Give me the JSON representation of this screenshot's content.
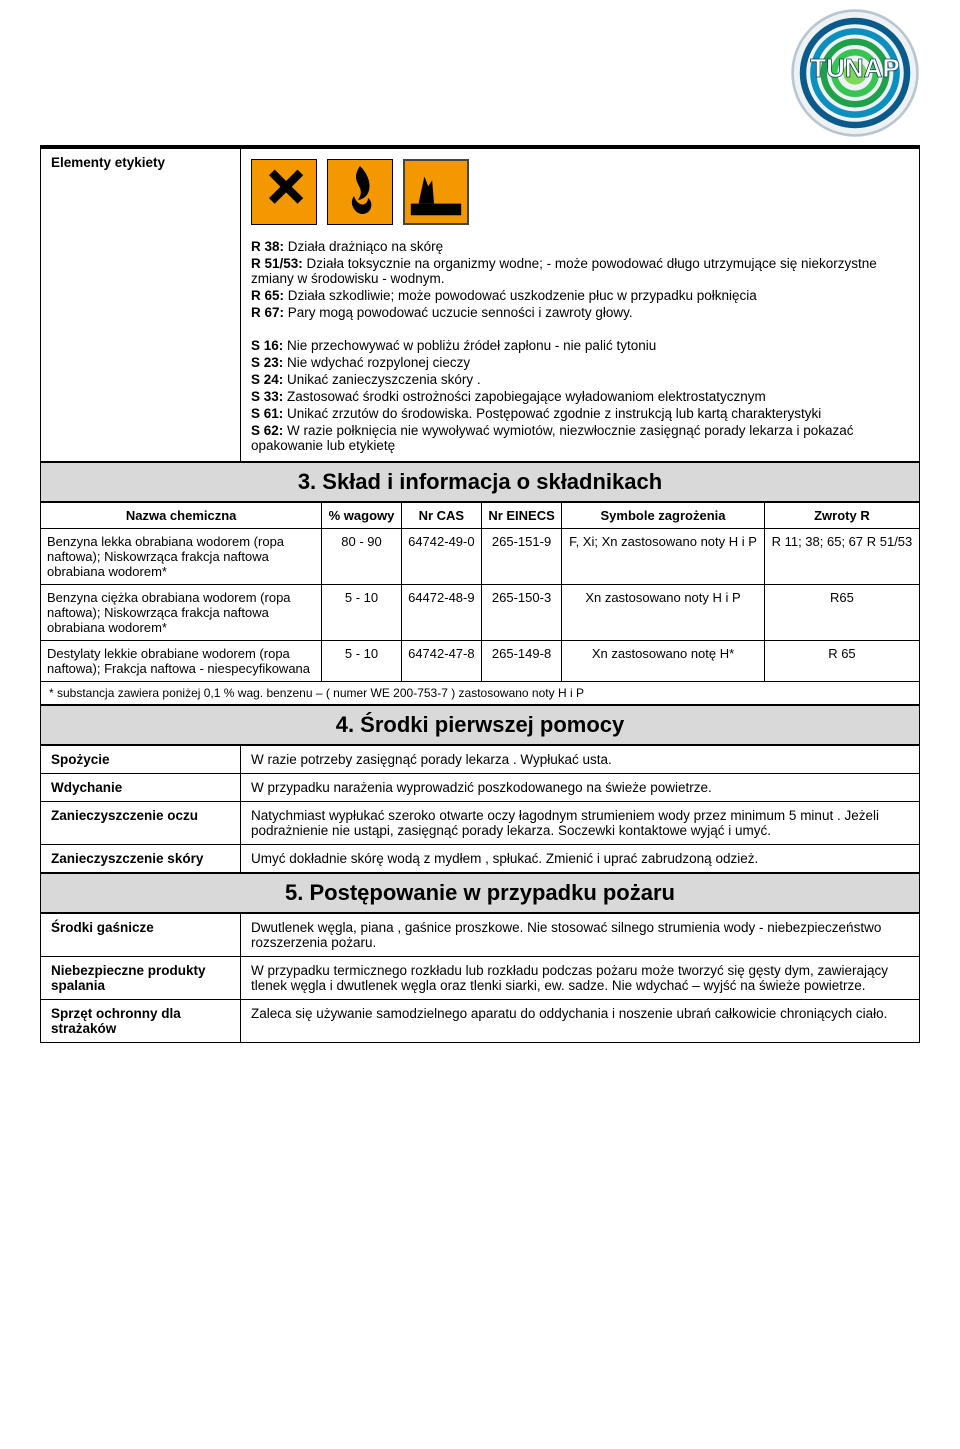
{
  "logo_text": "TUNAP",
  "sec2_label": "Elementy etykiety",
  "r_phrases": [
    {
      "code": "R 38:",
      "text": "Działa drażniąco na  skórę"
    },
    {
      "code": "R 51/53:",
      "text": "Działa toksycznie  na organizmy wodne; - może powodować długo utrzymujące się niekorzystne zmiany w środowisku - wodnym."
    },
    {
      "code": "R 65:",
      "text": "Działa szkodliwie; może powodować uszkodzenie płuc w przypadku połknięcia"
    },
    {
      "code": "R 67:",
      "text": "Pary mogą powodować uczucie senności i zawroty głowy."
    }
  ],
  "s_phrases": [
    {
      "code": "S 16:",
      "text": "Nie przechowywać w pobliżu źródeł zapłonu - nie palić tytoniu"
    },
    {
      "code": "S 23:",
      "text": "Nie wdychać rozpylonej cieczy"
    },
    {
      "code": "S 24:",
      "text": "Unikać zanieczyszczenia skóry ."
    },
    {
      "code": "S 33:",
      "text": "Zastosować środki ostrożności zapobiegające wyładowaniom elektrostatycznym"
    },
    {
      "code": "S 61:",
      "text": "Unikać zrzutów do środowiska.  Postępować  zgodnie z instrukcją  lub kartą charakterystyki"
    },
    {
      "code": "S 62:",
      "text": "W razie połknięcia nie wywoływać wymiotów, niezwłocznie zasięgnąć porady lekarza i pokazać opakowanie lub etykietę"
    }
  ],
  "sec3_title": "3. Skład i informacja o składnikach",
  "comp_headers": {
    "name": "Nazwa chemiczna",
    "pct": "% wagowy",
    "cas": "Nr CAS",
    "einecs": "Nr EINECS",
    "sym": "Symbole zagrożenia",
    "r": "Zwroty R"
  },
  "comp_rows": [
    {
      "name": "Benzyna lekka obrabiana wodorem (ropa naftowa); Niskowrząca frakcja naftowa obrabiana wodorem*",
      "pct": "80 - 90",
      "cas": "64742-49-0",
      "einecs": "265-151-9",
      "sym": "F, Xi; Xn zastosowano noty H i P",
      "r": "R 11; 38;  65; 67 R 51/53"
    },
    {
      "name": "Benzyna ciężka obrabiana wodorem (ropa naftowa); Niskowrząca frakcja naftowa obrabiana wodorem*",
      "pct": "5 - 10",
      "cas": "64472-48-9",
      "einecs": "265-150-3",
      "sym": "Xn zastosowano noty H i P",
      "r": "R65"
    },
    {
      "name": "Destylaty lekkie obrabiane wodorem (ropa naftowa); Frakcja naftowa - niespecyfikowana",
      "pct": "5 - 10",
      "cas": "64742-47-8",
      "einecs": "265-149-8",
      "sym": "Xn zastosowano notę H*",
      "r": "R 65"
    }
  ],
  "comp_footnote": "*  substancja zawiera poniżej 0,1 % wag. benzenu – ( numer WE 200-753-7 ) zastosowano  noty H i P",
  "sec4_title": "4. Środki pierwszej pomocy",
  "sec4_rows": [
    {
      "k": "Spożycie",
      "v": "W razie potrzeby zasięgnąć porady lekarza . Wypłukać  usta."
    },
    {
      "k": "Wdychanie",
      "v": "W przypadku narażenia wyprowadzić poszkodowanego na świeże powietrze."
    },
    {
      "k": "Zanieczyszczenie oczu",
      "v": "Natychmiast wypłukać szeroko otwarte oczy łagodnym strumieniem wody przez minimum 5 minut . Jeżeli podrażnienie nie ustąpi, zasięgnąć porady lekarza. Soczewki kontaktowe wyjąć i umyć."
    },
    {
      "k": "Zanieczyszczenie skóry",
      "v": "Umyć dokładnie skórę  wodą z mydłem , spłukać.  Zmienić i uprać zabrudzoną odzież."
    }
  ],
  "sec5_title": "5. Postępowanie w przypadku pożaru",
  "sec5_rows": [
    {
      "k": "Środki gaśnicze",
      "v": "Dwutlenek węgla, piana , gaśnice proszkowe. Nie stosować silnego strumienia wody  - niebezpieczeństwo rozszerzenia pożaru."
    },
    {
      "k": "Niebezpieczne produkty spalania",
      "v": "W przypadku termicznego rozkładu lub rozkładu podczas pożaru  może tworzyć się gęsty dym, zawierający tlenek węgla i dwutlenek węgla oraz tlenki siarki, ew. sadze. Nie wdychać – wyjść na świeże powietrze."
    },
    {
      "k": "Sprzęt ochronny dla strażaków",
      "v": "Zaleca się używanie samodzielnego aparatu do oddychania i noszenie ubrań całkowicie chroniących ciało."
    }
  ],
  "colors": {
    "hazard_bg": "#f39800",
    "section_bg": "#d9d9d9",
    "logo_ring1": "#0a5b8a",
    "logo_ring2": "#1fa04a",
    "logo_center": "#7ed957"
  }
}
